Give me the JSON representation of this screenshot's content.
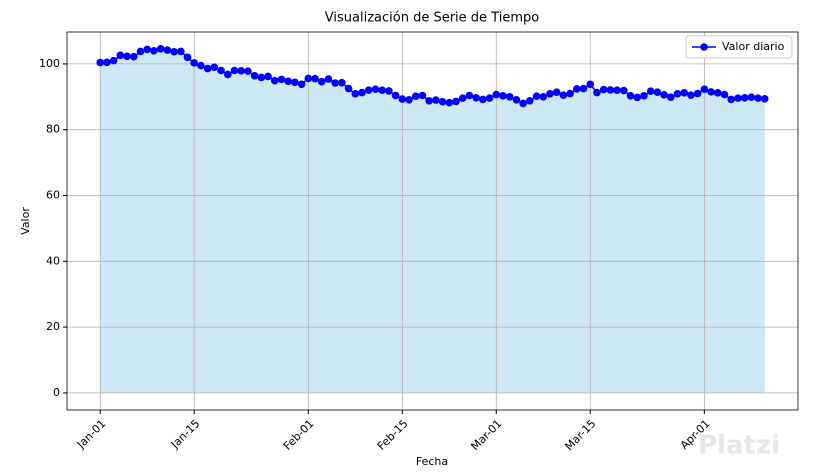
{
  "chart_data": {
    "type": "line",
    "title": "Visualización de Serie de Tiempo",
    "x_label": "Fecha",
    "y_label": "Valor",
    "categories": [
      "Jan-01",
      null,
      null,
      null,
      null,
      null,
      null,
      null,
      null,
      null,
      null,
      null,
      null,
      null,
      "Jan-15",
      null,
      null,
      null,
      null,
      null,
      null,
      null,
      null,
      null,
      null,
      null,
      null,
      null,
      null,
      null,
      null,
      "Feb-01",
      null,
      null,
      null,
      null,
      null,
      null,
      null,
      null,
      null,
      null,
      null,
      null,
      null,
      "Feb-15",
      null,
      null,
      null,
      null,
      null,
      null,
      null,
      null,
      null,
      null,
      null,
      null,
      null,
      "Mar-01",
      null,
      null,
      null,
      null,
      null,
      null,
      null,
      null,
      null,
      null,
      null,
      null,
      null,
      "Mar-15",
      null,
      null,
      null,
      null,
      null,
      null,
      null,
      null,
      null,
      null,
      null,
      null,
      null,
      null,
      null,
      null,
      "Apr-01",
      null,
      null,
      null,
      null,
      null,
      null,
      null,
      null,
      null
    ],
    "series": [
      {
        "name": "Valor diario",
        "color": "#0000ff",
        "fill_color": "#cfe8f5",
        "values": [
          100.4,
          100.5,
          101,
          102.6,
          102.3,
          102.2,
          103.8,
          104.4,
          104,
          104.6,
          104.2,
          103.7,
          103.8,
          102,
          100.3,
          99.5,
          98.6,
          99,
          98,
          96.8,
          98,
          97.9,
          97.8,
          96.4,
          95.9,
          96.2,
          94.9,
          95.3,
          94.7,
          94.4,
          93.8,
          95.6,
          95.5,
          94.6,
          95.4,
          94.2,
          94.3,
          92.5,
          90.9,
          91.3,
          92,
          92.3,
          92,
          91.8,
          90.4,
          89.3,
          89.1,
          90.2,
          90.4,
          88.8,
          89,
          88.5,
          88.2,
          88.6,
          89.6,
          90.4,
          89.7,
          89.2,
          89.6,
          90.7,
          90.3,
          90,
          89.1,
          88,
          88.8,
          90.2,
          90,
          90.9,
          91.4,
          90.5,
          91,
          92.4,
          92.5,
          93.8,
          91.3,
          92.2,
          92.1,
          92,
          91.9,
          90.3,
          89.8,
          90.3,
          91.7,
          91.4,
          90.6,
          89.9,
          90.9,
          91.2,
          90.5,
          91,
          92.3,
          91.5,
          91.2,
          90.7,
          89.2,
          89.6,
          89.7,
          89.9,
          89.6,
          89.4
        ]
      }
    ],
    "ylim": [
      -5.2,
      109.7
    ],
    "yticks": [
      0,
      20,
      40,
      60,
      80,
      100
    ],
    "grid": true,
    "legend": "upper right",
    "watermark": "Platzi"
  }
}
